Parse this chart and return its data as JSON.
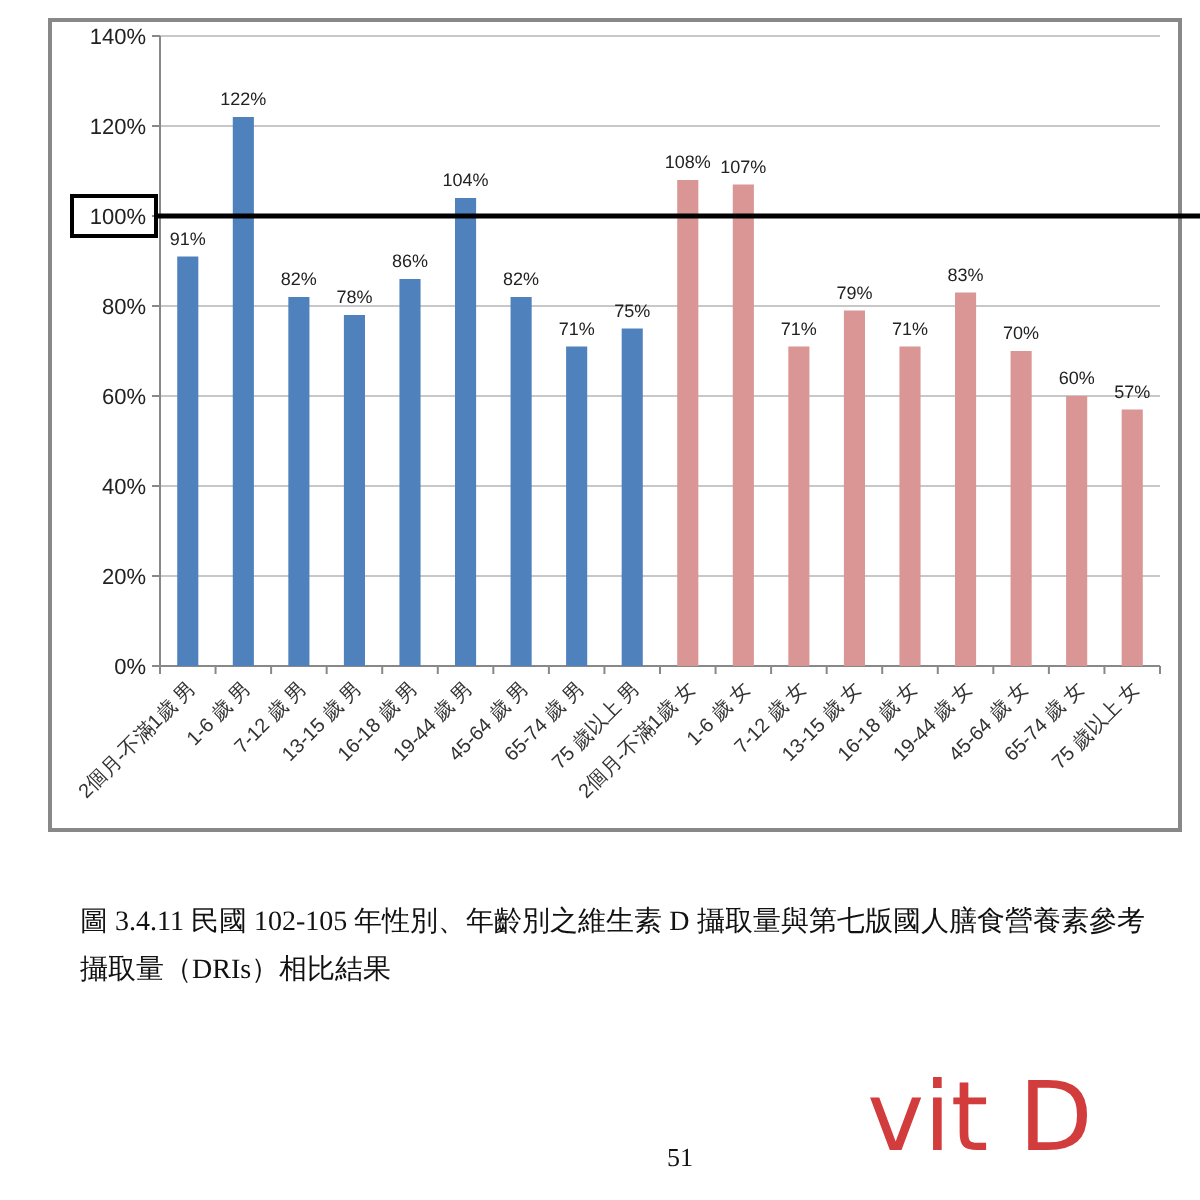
{
  "chart_data": {
    "type": "bar",
    "categories": [
      "2個月-不滿1歲 男",
      "1-6 歲 男",
      "7-12 歲 男",
      "13-15 歲 男",
      "16-18 歲 男",
      "19-44 歲 男",
      "45-64 歲 男",
      "65-74 歲 男",
      "75 歲以上 男",
      "2個月-不滿1歲 女",
      "1-6 歲 女",
      "7-12 歲 女",
      "13-15 歲 女",
      "16-18 歲 女",
      "19-44 歲 女",
      "45-64 歲 女",
      "65-74 歲 女",
      "75 歲以上 女"
    ],
    "values": [
      91,
      122,
      82,
      78,
      86,
      104,
      82,
      71,
      75,
      108,
      107,
      71,
      79,
      71,
      83,
      70,
      60,
      57
    ],
    "colors": [
      "#4f81bd",
      "#4f81bd",
      "#4f81bd",
      "#4f81bd",
      "#4f81bd",
      "#4f81bd",
      "#4f81bd",
      "#4f81bd",
      "#4f81bd",
      "#d99694",
      "#d99694",
      "#d99694",
      "#d99694",
      "#d99694",
      "#d99694",
      "#d99694",
      "#d99694",
      "#d99694"
    ],
    "value_labels": [
      "91%",
      "122%",
      "82%",
      "78%",
      "86%",
      "104%",
      "82%",
      "71%",
      "75%",
      "108%",
      "107%",
      "71%",
      "79%",
      "71%",
      "83%",
      "70%",
      "60%",
      "57%"
    ],
    "ylim": [
      0,
      140
    ],
    "yticks": [
      {
        "value": 0,
        "label": "0%"
      },
      {
        "value": 20,
        "label": "20%"
      },
      {
        "value": 40,
        "label": "40%"
      },
      {
        "value": 60,
        "label": "60%"
      },
      {
        "value": 80,
        "label": "80%"
      },
      {
        "value": 100,
        "label": "100%"
      },
      {
        "value": 120,
        "label": "120%"
      },
      {
        "value": 140,
        "label": "140%"
      }
    ],
    "grid": "y",
    "ref_lines": [
      {
        "axis": "y",
        "value": 100,
        "color": "#000000"
      }
    ],
    "annotations": [
      "圖 3.4.11 民國 102-105 年性別、年齡別之維生素 D 攝取量與第七版國人膳食營養素參考攝取量（DRIs）相比結果",
      "51",
      "vit D"
    ]
  }
}
